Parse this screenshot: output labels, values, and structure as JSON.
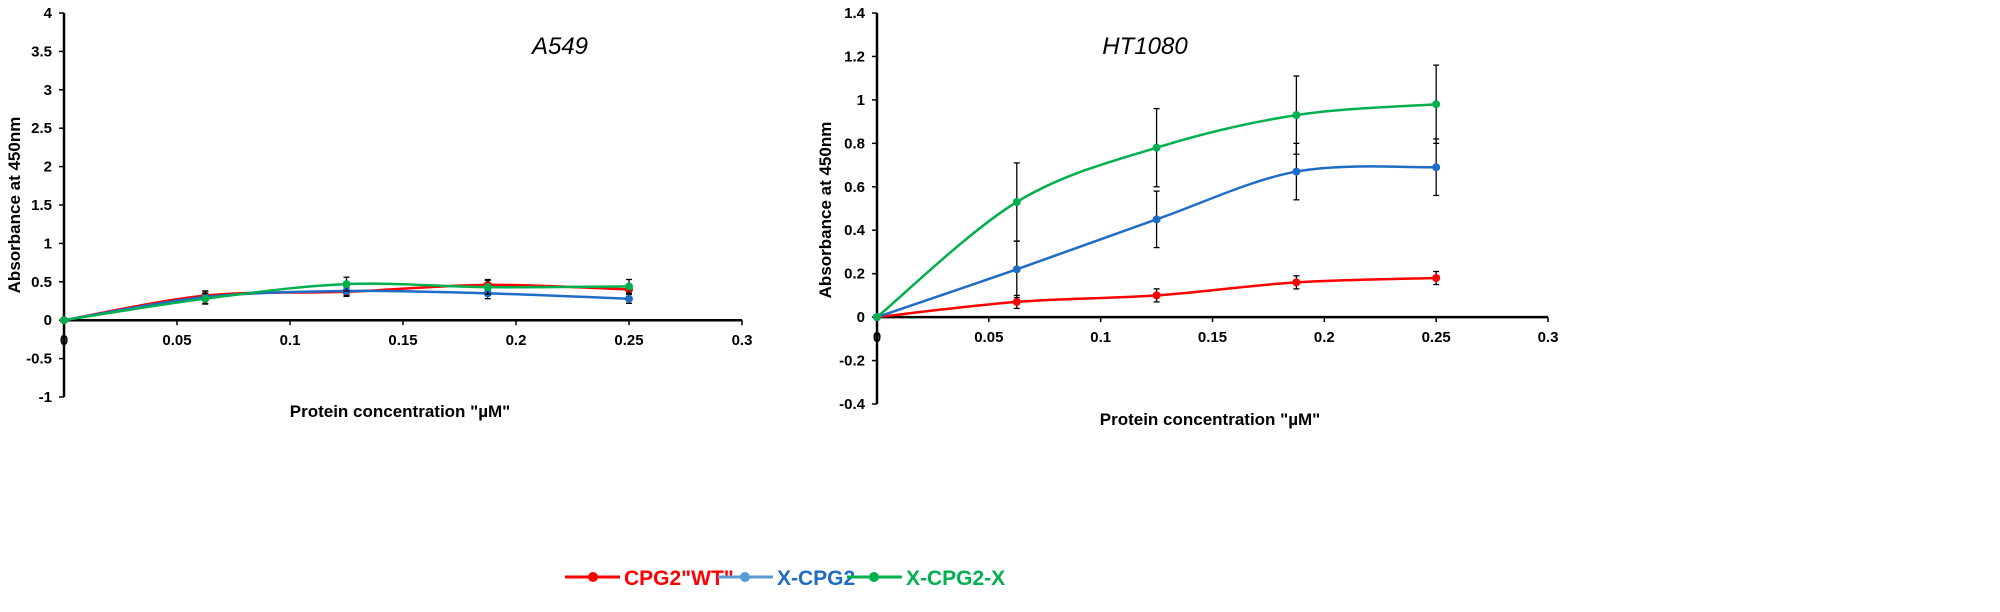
{
  "legend": [
    {
      "name": "CPG2\"WT\"",
      "color": "#ff0000"
    },
    {
      "name": "X-CPG2",
      "color": "#1f6cc7",
      "marker_color": "#5b9bd5"
    },
    {
      "name": "X-CPG2-X",
      "color": "#00b04f"
    }
  ],
  "chart_data": [
    {
      "type": "line",
      "title": "A549",
      "xlabel": "Protein concentration \"µM\"",
      "ylabel": "Absorbance at 450nm",
      "xlim": [
        0,
        0.3
      ],
      "ylim": [
        -1,
        4
      ],
      "xticks": [
        "0",
        "0.05",
        "0.1",
        "0.15",
        "0.2",
        "0.25",
        "0.3"
      ],
      "yticks": [
        "-1",
        "-0.5",
        "0",
        "0.5",
        "1",
        "1.5",
        "2",
        "2.5",
        "3",
        "3.5",
        "4"
      ],
      "grid": false,
      "smooth": true,
      "x": [
        0,
        0.0625,
        0.125,
        0.1875,
        0.25
      ],
      "series": [
        {
          "name": "CPG2\"WT\"",
          "values": [
            0,
            0.32,
            0.37,
            0.46,
            0.4
          ],
          "errors": [
            0,
            0.06,
            0.06,
            0.07,
            0.06
          ]
        },
        {
          "name": "X-CPG2",
          "values": [
            0,
            0.3,
            0.38,
            0.35,
            0.28
          ],
          "errors": [
            0,
            0.08,
            0.06,
            0.07,
            0.06
          ]
        },
        {
          "name": "X-CPG2-X",
          "values": [
            0,
            0.28,
            0.47,
            0.43,
            0.44
          ],
          "errors": [
            0,
            0.07,
            0.09,
            0.09,
            0.09
          ]
        }
      ]
    },
    {
      "type": "line",
      "title": "HT1080",
      "xlabel": "Protein concentration \"µM\"",
      "ylabel": "Absorbance at 450nm",
      "xlim": [
        0,
        0.3
      ],
      "ylim": [
        -0.4,
        1.4
      ],
      "xticks": [
        "0",
        "0.05",
        "0.1",
        "0.15",
        "0.2",
        "0.25",
        "0.3"
      ],
      "yticks": [
        "-0.4",
        "-0.2",
        "0",
        "0.2",
        "0.4",
        "0.6",
        "0.8",
        "1",
        "1.2",
        "1.4"
      ],
      "grid": false,
      "smooth": true,
      "x": [
        0,
        0.0625,
        0.125,
        0.1875,
        0.25
      ],
      "series": [
        {
          "name": "CPG2\"WT\"",
          "values": [
            0,
            0.07,
            0.1,
            0.16,
            0.18
          ],
          "errors": [
            0,
            0.03,
            0.03,
            0.03,
            0.03
          ]
        },
        {
          "name": "X-CPG2",
          "values": [
            0,
            0.22,
            0.45,
            0.67,
            0.69
          ],
          "errors": [
            0,
            0.13,
            0.13,
            0.13,
            0.13
          ]
        },
        {
          "name": "X-CPG2-X",
          "values": [
            0,
            0.53,
            0.78,
            0.93,
            0.98
          ],
          "errors": [
            0,
            0.18,
            0.18,
            0.18,
            0.18
          ]
        }
      ]
    }
  ]
}
